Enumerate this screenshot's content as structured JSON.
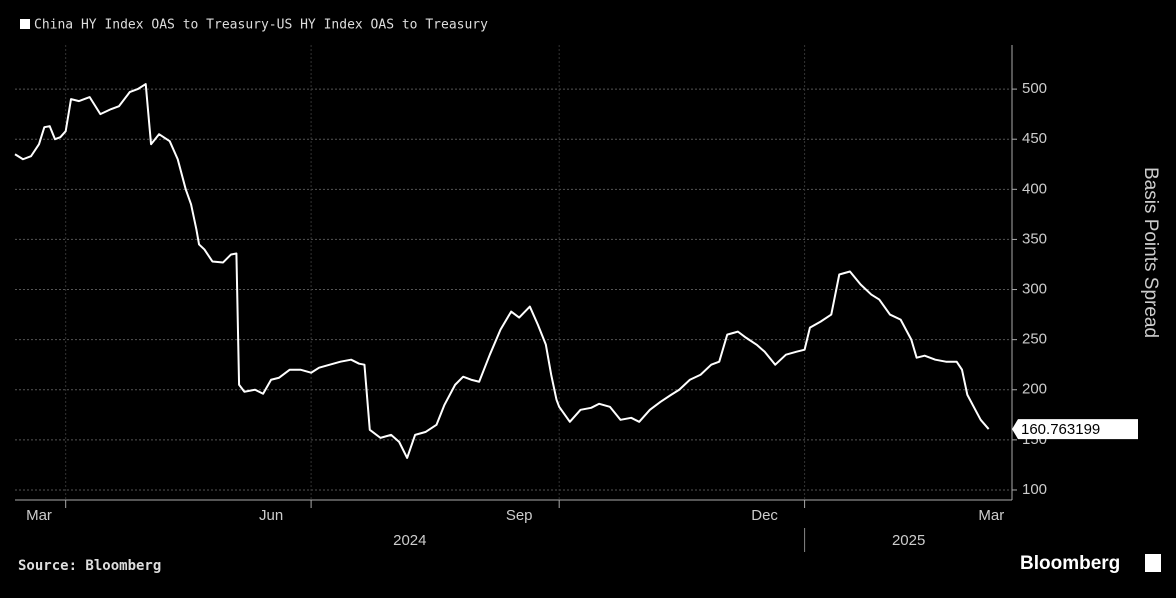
{
  "chart_data": {
    "type": "line",
    "series": [
      {
        "name": "China HY Index OAS to Treasury-US HY Index OAS to Treasury",
        "color": "#ffffff",
        "x": [
          0,
          3,
          6,
          9,
          11,
          13,
          15,
          17,
          19,
          21,
          24,
          28,
          32,
          36,
          39,
          43,
          46,
          49,
          51,
          54,
          58,
          61,
          64,
          66,
          68,
          69,
          71,
          74,
          78,
          81,
          83,
          84,
          86,
          90,
          93,
          96,
          99,
          103,
          107,
          111,
          114,
          118,
          122,
          126,
          129,
          131,
          133,
          137,
          141,
          144,
          147,
          150,
          154,
          158,
          161,
          165,
          168,
          171,
          174,
          178,
          182,
          186,
          189,
          193,
          196,
          199,
          201,
          203,
          204,
          208,
          212,
          216,
          219,
          223,
          227,
          231,
          234,
          238,
          242,
          246,
          249,
          253,
          257,
          261,
          264,
          267,
          271,
          274,
          278,
          281,
          285,
          289,
          293,
          296,
          298,
          302,
          306,
          309,
          313,
          317,
          321,
          324,
          328,
          332,
          336,
          338,
          341,
          345,
          349,
          353,
          355,
          357,
          360,
          362,
          365
        ],
        "values": [
          435,
          430,
          433,
          445,
          462,
          463,
          450,
          452,
          458,
          490,
          488,
          492,
          475,
          480,
          483,
          497,
          500,
          505,
          445,
          455,
          448,
          430,
          400,
          385,
          360,
          345,
          340,
          328,
          327,
          335,
          336,
          205,
          198,
          200,
          196,
          210,
          212,
          220,
          220,
          217,
          222,
          225,
          228,
          230,
          226,
          225,
          160,
          152,
          155,
          148,
          132,
          155,
          158,
          165,
          185,
          205,
          213,
          210,
          208,
          235,
          260,
          278,
          272,
          283,
          265,
          245,
          215,
          190,
          183,
          168,
          180,
          182,
          186,
          183,
          170,
          172,
          168,
          180,
          188,
          195,
          200,
          210,
          215,
          225,
          228,
          255,
          258,
          252,
          245,
          238,
          225,
          235,
          238,
          240,
          262,
          268,
          275,
          315,
          318,
          305,
          295,
          290,
          275,
          270,
          250,
          232,
          234,
          230,
          228,
          228,
          220,
          195,
          180,
          170,
          160.763199
        ]
      }
    ],
    "ylabel": "Basis Points Spread",
    "ylim": [
      90,
      544
    ],
    "yticks": [
      100,
      150,
      200,
      250,
      300,
      350,
      400,
      450,
      500
    ],
    "xlim": [
      0,
      373
    ],
    "xticks": [
      {
        "value": 9,
        "label": "Mar"
      },
      {
        "value": 96,
        "label": "Jun"
      },
      {
        "value": 189,
        "label": "Sep"
      },
      {
        "value": 281,
        "label": "Dec"
      },
      {
        "value": 366,
        "label": "Mar"
      }
    ],
    "xgrid": [
      19,
      111,
      204,
      296
    ],
    "year_labels": [
      {
        "value": 148,
        "label": "2024"
      },
      {
        "value": 335,
        "label": "2025"
      }
    ],
    "year_divider": 296,
    "grid": true,
    "source": "Source: Bloomberg",
    "brand": "Bloomberg"
  }
}
